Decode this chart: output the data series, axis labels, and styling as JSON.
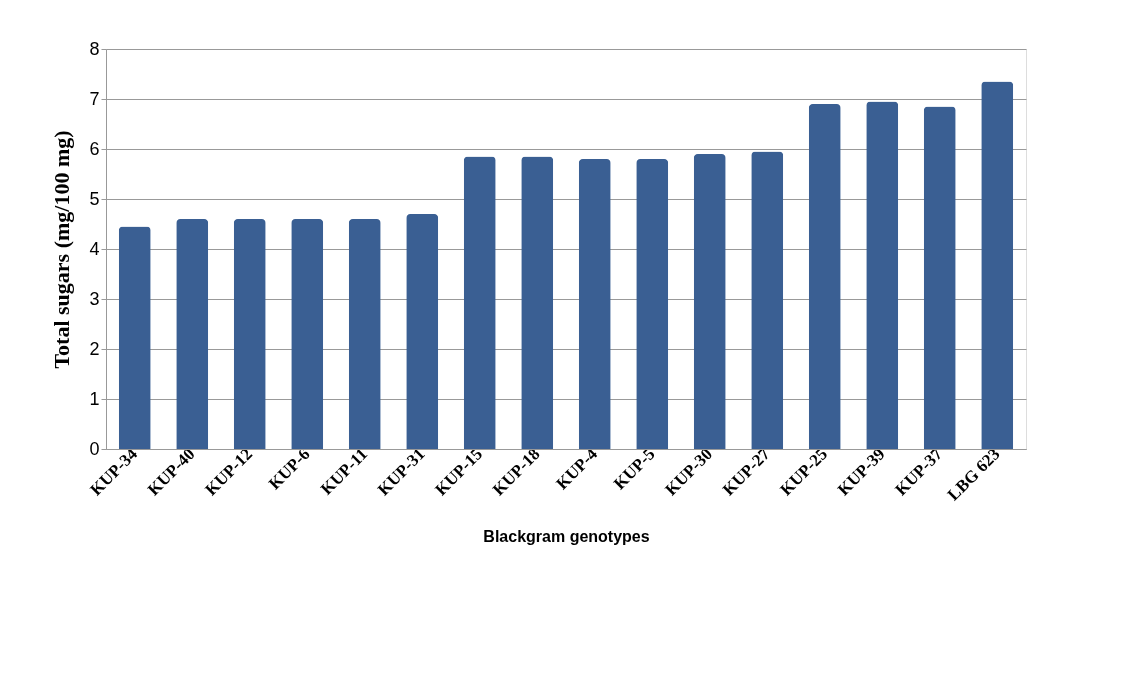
{
  "chart_data": {
    "type": "bar",
    "xlabel": "Blackgram genotypes",
    "ylabel": "Total sugars  (mg/100 mg)",
    "categories": [
      "KUP-34",
      "KUP-40",
      "KUP-12",
      "KUP-6",
      "KUP-11",
      "KUP-31",
      "KUP-15",
      "KUP-18",
      "KUP-4",
      "KUP-5",
      "KUP-30",
      "KUP-27",
      "KUP-25",
      "KUP-39",
      "KUP-37",
      "LBG 623"
    ],
    "values": [
      4.45,
      4.6,
      4.6,
      4.6,
      4.6,
      4.7,
      5.85,
      5.85,
      5.8,
      5.8,
      5.9,
      5.95,
      6.9,
      6.95,
      6.85,
      7.35
    ],
    "color": "#3a5f93",
    "ylim": [
      0,
      8
    ],
    "yticks": [
      0,
      1,
      2,
      3,
      4,
      5,
      6,
      7,
      8
    ],
    "grid": "y"
  }
}
